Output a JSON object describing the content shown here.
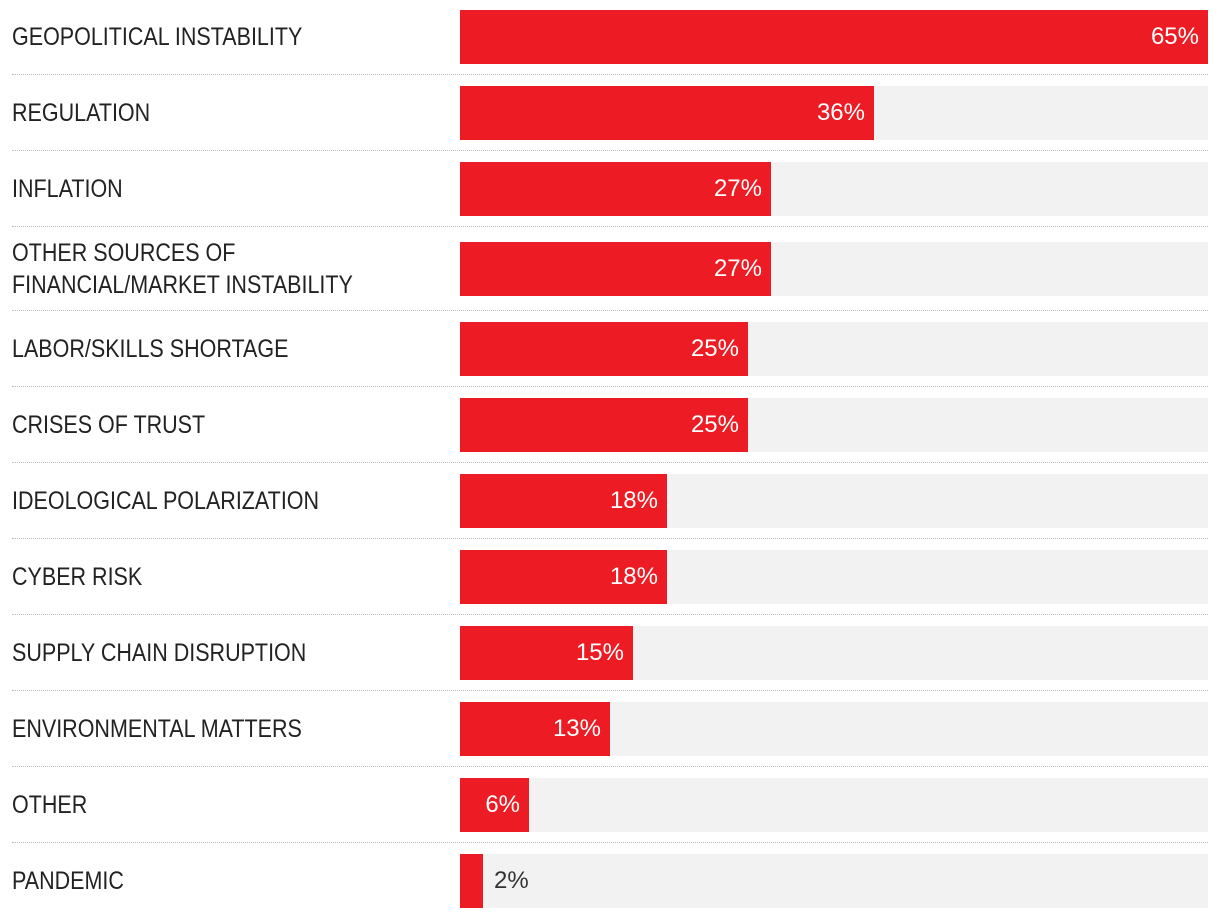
{
  "chart_data": {
    "type": "bar",
    "orientation": "horizontal",
    "title": "",
    "xlabel": "",
    "ylabel": "",
    "xlim": [
      0,
      65
    ],
    "value_suffix": "%",
    "categories": [
      "GEOPOLITICAL INSTABILITY",
      "REGULATION",
      "INFLATION",
      "OTHER SOURCES OF FINANCIAL/MARKET INSTABILITY",
      "LABOR/SKILLS SHORTAGE",
      "CRISES OF TRUST",
      "IDEOLOGICAL POLARIZATION",
      "CYBER RISK",
      "SUPPLY CHAIN DISRUPTION",
      "ENVIRONMENTAL MATTERS",
      "OTHER",
      "PANDEMIC"
    ],
    "values": [
      65,
      36,
      27,
      27,
      25,
      25,
      18,
      18,
      15,
      13,
      6,
      2
    ],
    "labels": [
      "65%",
      "36%",
      "27%",
      "27%",
      "25%",
      "25%",
      "18%",
      "18%",
      "15%",
      "13%",
      "6%",
      "2%"
    ],
    "colors": {
      "bar": "#ed1c24",
      "track": "#f2f2f2",
      "label_text": "#222222",
      "divider": "#bdbdbd"
    }
  }
}
